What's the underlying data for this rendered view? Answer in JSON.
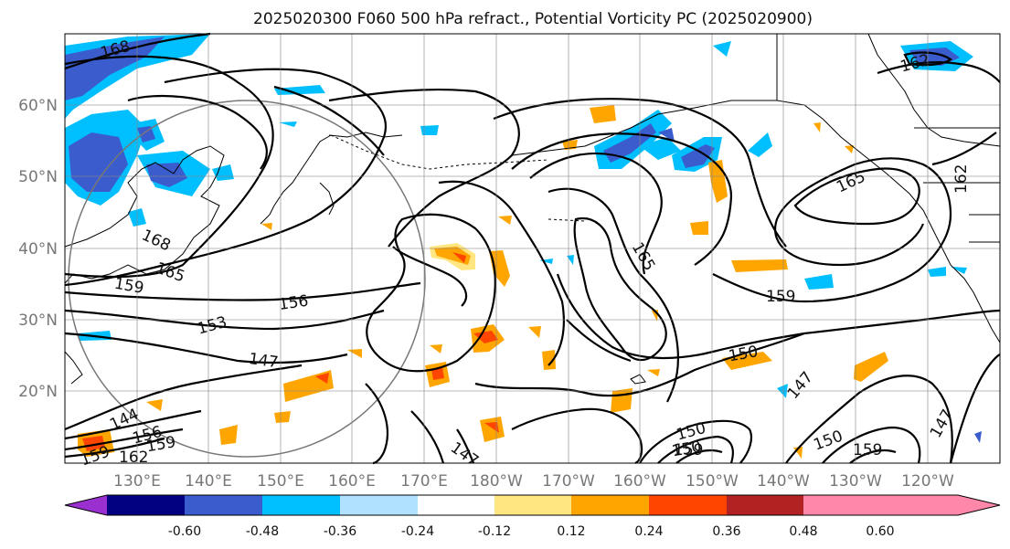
{
  "title": "2025020300 F060 500 hPa refract., Potential Vorticity PC (2025020900)",
  "lon_labels": [
    "130°E",
    "140°E",
    "150°E",
    "160°E",
    "170°E",
    "180°W",
    "170°W",
    "160°W",
    "150°W",
    "140°W",
    "130°W",
    "120°W"
  ],
  "lat_labels": [
    "20°N",
    "30°N",
    "40°N",
    "50°N",
    "60°N"
  ],
  "contour_labels": [
    "168",
    "168",
    "165",
    "159",
    "156",
    "153",
    "147",
    "144",
    "156",
    "159",
    "162",
    "159",
    "147",
    "150",
    "150",
    "150",
    "159",
    "165",
    "159",
    "147",
    "150",
    "159",
    "147",
    "162",
    "165",
    "162"
  ],
  "colorbar": {
    "ticks": [
      "-0.60",
      "-0.48",
      "-0.36",
      "-0.24",
      "-0.12",
      "0.12",
      "0.24",
      "0.36",
      "0.48",
      "0.60"
    ],
    "colors": [
      "#9b30d0",
      "#000080",
      "#3a5ccc",
      "#00bfff",
      "#b0e2ff",
      "#ffffff",
      "#ffe680",
      "#ffa500",
      "#ff4500",
      "#b22222",
      "#ff88aa"
    ]
  }
}
